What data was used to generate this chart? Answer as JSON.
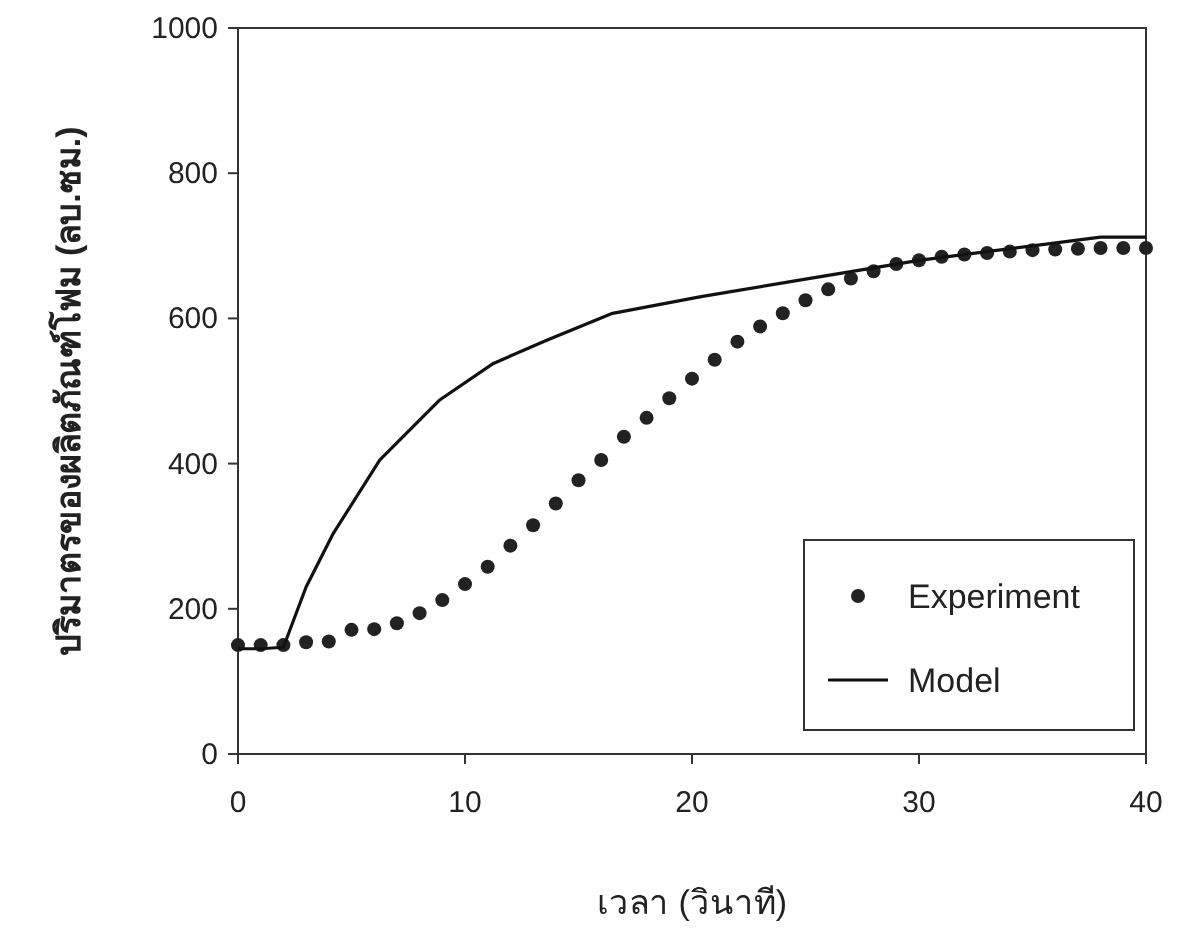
{
  "chart_data": {
    "type": "line",
    "xlabel": "เวลา (วินาที)",
    "ylabel": "ปริมาตรของผลิตภัณฑ์โฟม (ลบ.ซม.)",
    "xlim": [
      0,
      40
    ],
    "ylim": [
      0,
      1000
    ],
    "xticks": [
      0,
      10,
      20,
      30,
      40
    ],
    "yticks": [
      0,
      200,
      400,
      600,
      800,
      1000
    ],
    "grid": false,
    "legend": "bottom right",
    "series": [
      {
        "name": "Experiment",
        "type": "scatter",
        "marker": "circle",
        "color": "#222222",
        "x": [
          0,
          1,
          2,
          3,
          4,
          5,
          6,
          7,
          8,
          9,
          10,
          11,
          12,
          13,
          14,
          15,
          16,
          17,
          18,
          19,
          20,
          21,
          22,
          23,
          24,
          25,
          26,
          27,
          28,
          29,
          30,
          31,
          32,
          33,
          34,
          35,
          36,
          37,
          38,
          39,
          40
        ],
        "values": [
          150,
          150,
          150,
          154,
          155,
          171,
          172,
          180,
          194,
          212,
          234,
          258,
          287,
          315,
          345,
          377,
          405,
          437,
          463,
          490,
          517,
          543,
          568,
          589,
          607,
          625,
          640,
          655,
          665,
          675,
          680,
          685,
          688,
          690,
          692,
          694,
          695,
          696,
          697,
          697,
          697
        ]
      },
      {
        "name": "Model",
        "marker": "none",
        "line_style": "solid",
        "color": "#111111",
        "x": [
          0,
          1,
          2,
          3,
          4.2,
          6.25,
          8.9,
          11.25,
          13.6,
          16.5,
          20.4,
          24.8,
          30,
          35,
          38,
          40
        ],
        "values": [
          145,
          145,
          147,
          230,
          304,
          405,
          488,
          538,
          570,
          607,
          630,
          653,
          680,
          700,
          712,
          712
        ]
      }
    ]
  }
}
